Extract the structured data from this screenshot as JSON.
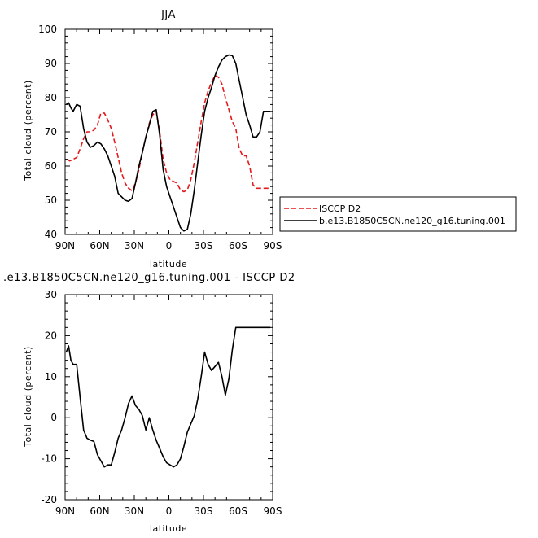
{
  "chart_data": [
    {
      "type": "line",
      "title": "JJA",
      "xlabel": "latitude",
      "ylabel": "Total cloud (percent)",
      "xlim": [
        90,
        -90
      ],
      "ylim": [
        40,
        100
      ],
      "x_tick_values": [
        90,
        60,
        30,
        0,
        -30,
        -60,
        -90
      ],
      "x_tick_labels": [
        "90N",
        "60N",
        "30N",
        "0",
        "30S",
        "60S",
        "90S"
      ],
      "y_tick_values": [
        40,
        50,
        60,
        70,
        80,
        90,
        100
      ],
      "y_tick_labels": [
        "40",
        "50",
        "60",
        "70",
        "80",
        "90",
        "100"
      ],
      "legend": "right",
      "series": [
        {
          "name": "ISCCP D2",
          "color": "#e31a1c",
          "style": "dashed",
          "x": [
            88,
            86,
            83,
            80,
            77,
            74,
            71,
            68,
            65,
            62,
            59,
            56,
            53,
            50,
            47,
            44,
            41,
            38,
            35,
            32,
            29,
            26,
            23,
            20,
            17,
            14,
            11,
            8,
            5,
            2,
            -1,
            -4,
            -7,
            -10,
            -13,
            -16,
            -19,
            -22,
            -25,
            -28,
            -31,
            -34,
            -37,
            -40,
            -43,
            -46,
            -49,
            -52,
            -55,
            -58,
            -61,
            -64,
            -67,
            -70,
            -73,
            -76,
            -79,
            -82,
            -85,
            -88
          ],
          "y": [
            62,
            61.5,
            62,
            62.5,
            65,
            68,
            70,
            70,
            70.5,
            72,
            75.5,
            75.5,
            73.5,
            71,
            67,
            62.5,
            58,
            55,
            53.5,
            52.8,
            55,
            59,
            64,
            68.5,
            72.5,
            75,
            76,
            70,
            62,
            58,
            56,
            55.5,
            55,
            53,
            52.5,
            53,
            56,
            61,
            67,
            73,
            78.5,
            82,
            84.5,
            86.5,
            86,
            84,
            80,
            76.5,
            73,
            71,
            65,
            63,
            63,
            60,
            54.5,
            53.5,
            53.5,
            53.5,
            53.5,
            53.5
          ]
        },
        {
          "name": "b.e13.B1850C5CN.ne120_g16.tuning.001",
          "color": "#000000",
          "style": "solid",
          "x": [
            89,
            87,
            85,
            83,
            80,
            77,
            74,
            71,
            68,
            65,
            62,
            59,
            56,
            53,
            50,
            47,
            44,
            41,
            38,
            35,
            32,
            29,
            26,
            23,
            20,
            17,
            14,
            11,
            8,
            5,
            2,
            -1,
            -4,
            -7,
            -10,
            -13,
            -16,
            -19,
            -22,
            -25,
            -28,
            -31,
            -34,
            -37,
            -40,
            -43,
            -46,
            -49,
            -52,
            -55,
            -58,
            -61,
            -64,
            -67,
            -70,
            -73,
            -76,
            -79,
            -82,
            -85,
            -88
          ],
          "y": [
            78,
            78.5,
            77,
            76,
            78,
            77.5,
            71,
            67,
            65.5,
            66,
            67,
            66.5,
            65,
            63,
            60,
            57,
            52,
            51,
            50,
            49.7,
            50.5,
            55,
            60,
            64,
            68.5,
            72,
            76,
            76.5,
            69,
            59,
            54,
            51,
            48,
            45,
            42,
            41,
            41.5,
            46,
            53,
            61,
            69,
            76,
            80,
            83,
            86.5,
            89,
            91,
            92,
            92.5,
            92.3,
            90,
            85,
            80,
            75,
            72,
            68.5,
            68.5,
            70,
            76,
            76,
            76
          ]
        }
      ]
    },
    {
      "type": "line",
      "title": ".e13.B1850C5CN.ne120_g16.tuning.001 - ISCCP D2",
      "xlabel": "latitude",
      "ylabel": "Total cloud (percent)",
      "xlim": [
        90,
        -90
      ],
      "ylim": [
        -20,
        30
      ],
      "x_tick_values": [
        90,
        60,
        30,
        0,
        -30,
        -60,
        -90
      ],
      "x_tick_labels": [
        "90N",
        "60N",
        "30N",
        "0",
        "30S",
        "60S",
        "90S"
      ],
      "y_tick_values": [
        -20,
        -10,
        0,
        10,
        20,
        30
      ],
      "y_tick_labels": [
        "-20",
        "-10",
        "0",
        "10",
        "20",
        "30"
      ],
      "series": [
        {
          "color": "#000000",
          "style": "solid",
          "x": [
            89,
            87,
            85,
            83,
            80,
            77,
            74,
            71,
            68,
            65,
            62,
            59,
            56,
            53,
            50,
            47,
            44,
            41,
            38,
            35,
            32,
            29,
            26,
            23,
            20,
            17,
            14,
            11,
            8,
            5,
            2,
            -1,
            -4,
            -7,
            -10,
            -13,
            -16,
            -19,
            -22,
            -25,
            -28,
            -31,
            -34,
            -37,
            -40,
            -43,
            -46,
            -49,
            -52,
            -55,
            -58,
            -61,
            -64,
            -67,
            -70,
            -73,
            -76,
            -79,
            -82,
            -85,
            -88
          ],
          "y": [
            16,
            17.5,
            14,
            13,
            13,
            5,
            -3,
            -5,
            -5.5,
            -5.8,
            -9,
            -10.5,
            -12,
            -11.5,
            -11.5,
            -8.5,
            -5,
            -3,
            0,
            3.5,
            5.3,
            3,
            2,
            0.5,
            -3,
            0,
            -3,
            -5.5,
            -7.5,
            -9.5,
            -11,
            -11.5,
            -12,
            -11.5,
            -10,
            -7,
            -3.5,
            -1.5,
            0.5,
            4.5,
            10,
            16,
            13,
            11.5,
            12.5,
            13.5,
            10,
            5.5,
            9.5,
            16.5,
            22,
            22,
            22,
            22,
            22,
            22,
            22,
            22,
            22,
            22,
            22
          ]
        }
      ]
    }
  ]
}
